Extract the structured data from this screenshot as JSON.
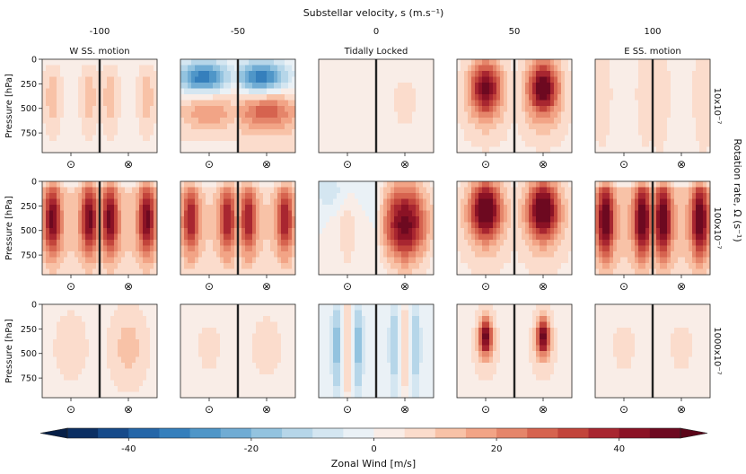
{
  "chart_data": {
    "type": "heatmap",
    "title": "Substellar velocity, s (m.s⁻¹)",
    "column_values": [
      "-100",
      "-50",
      "0",
      "50",
      "100"
    ],
    "column_labels": [
      "W SS. motion",
      "",
      "Tidally Locked",
      "",
      "E SS. motion"
    ],
    "row_values": [
      "10x10⁻⁷",
      "100x10⁻⁷",
      "1000x10⁻⁷"
    ],
    "right_axis_label": "Rotation rate, Ω (s⁻¹)",
    "ylabel": "Pressure [hPa]",
    "yticks": [
      "0",
      "250",
      "500",
      "750"
    ],
    "ylim": [
      950,
      0
    ],
    "panel_xticks": [
      "⊙",
      "⊗"
    ],
    "colorbar": {
      "label": "Zonal Wind [m/s]",
      "range": [
        -50,
        50
      ],
      "ticks": [
        "-40",
        "-20",
        "0",
        "20",
        "40"
      ],
      "levels": 20,
      "extend": "both"
    },
    "panels": [
      {
        "row": 0,
        "col": 0,
        "dayside_max_ms": 10,
        "nightside_max_ms": 10,
        "shape": "twin-lobe",
        "surface_ms": 0
      },
      {
        "row": 0,
        "col": 1,
        "dayside_max_ms": 15,
        "nightside_max_ms": 22,
        "jet_min_ms": -35,
        "shape": "easterly-top-westerly-mid"
      },
      {
        "row": 0,
        "col": 2,
        "dayside_max_ms": 3,
        "nightside_max_ms": 4,
        "shape": "weak"
      },
      {
        "row": 0,
        "col": 3,
        "dayside_max_ms": 38,
        "nightside_max_ms": 40,
        "shape": "central-jet"
      },
      {
        "row": 0,
        "col": 4,
        "dayside_max_ms": 5,
        "nightside_max_ms": 6,
        "shape": "weak-wide"
      },
      {
        "row": 1,
        "col": 0,
        "dayside_max_ms": 35,
        "nightside_max_ms": 35,
        "shape": "twin-lobe"
      },
      {
        "row": 1,
        "col": 1,
        "dayside_max_ms": 30,
        "nightside_max_ms": 30,
        "shape": "twin-lobe"
      },
      {
        "row": 1,
        "col": 2,
        "dayside_max_ms": 12,
        "nightside_max_ms": 48,
        "shape": "superrotating-core"
      },
      {
        "row": 1,
        "col": 3,
        "dayside_max_ms": 45,
        "nightside_max_ms": 45,
        "shape": "central-jet"
      },
      {
        "row": 1,
        "col": 4,
        "dayside_max_ms": 40,
        "nightside_max_ms": 40,
        "shape": "twin-lobe"
      },
      {
        "row": 2,
        "col": 0,
        "dayside_max_ms": 6,
        "nightside_max_ms": 10,
        "shape": "weak"
      },
      {
        "row": 2,
        "col": 1,
        "dayside_max_ms": 4,
        "nightside_max_ms": 5,
        "shape": "weak"
      },
      {
        "row": 2,
        "col": 2,
        "dayside_max_ms": 12,
        "nightside_max_ms": 10,
        "jet_min_ms": -20,
        "shape": "banded"
      },
      {
        "row": 2,
        "col": 3,
        "dayside_max_ms": 45,
        "nightside_max_ms": 45,
        "shape": "narrow-jet"
      },
      {
        "row": 2,
        "col": 4,
        "dayside_max_ms": 4,
        "nightside_max_ms": 4,
        "shape": "weak"
      }
    ]
  }
}
